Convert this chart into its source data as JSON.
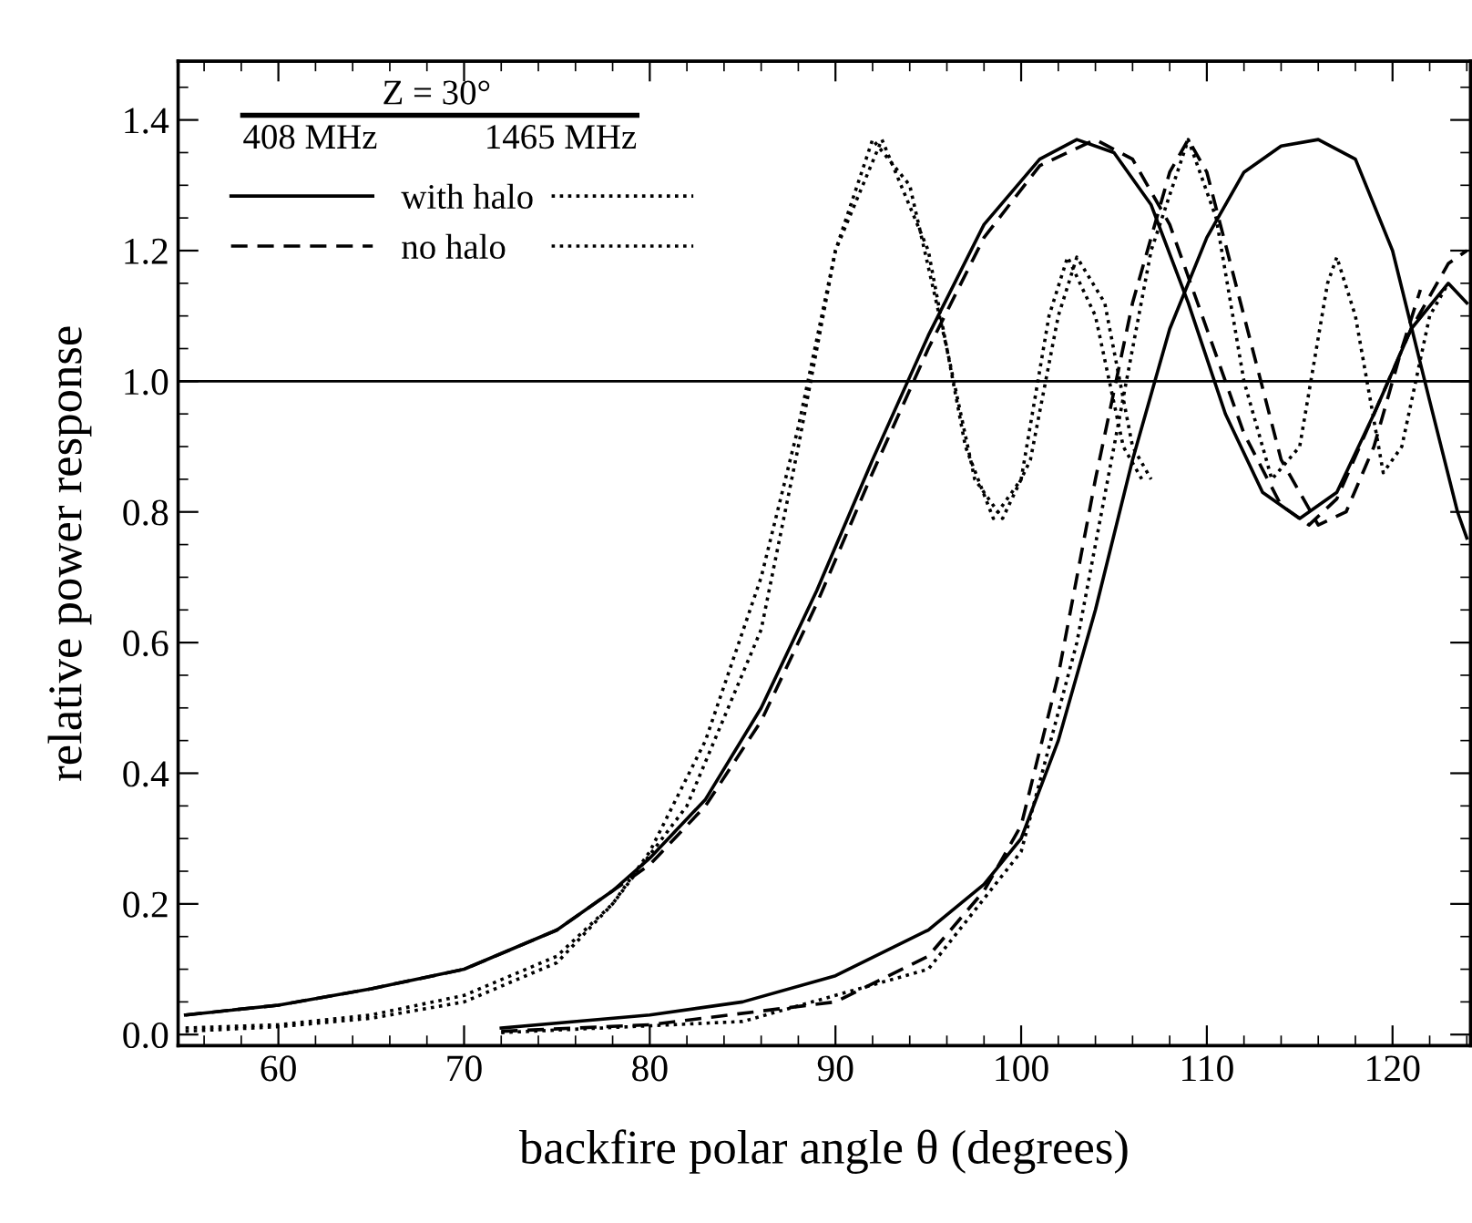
{
  "chart_data": {
    "type": "line",
    "xlabel": "backfire polar angle θ (degrees)",
    "ylabel": "relative power response",
    "legend_title": "Z = 30°",
    "annotations": [
      "408 MHz",
      "1465 MHz"
    ],
    "legend": "top left",
    "grid": false,
    "marker": "none",
    "xlim": [
      54.6,
      124.2
    ],
    "xticks": [
      60,
      70,
      80,
      90,
      100,
      110,
      120
    ],
    "ylim": [
      -0.017,
      1.49
    ],
    "yticks": [
      {
        "value": 0,
        "label": "0.0"
      },
      {
        "value": 0.2,
        "label": "0.2"
      },
      {
        "value": 0.4,
        "label": "0.4"
      },
      {
        "value": 0.6,
        "label": "0.6"
      },
      {
        "value": 0.8,
        "label": "0.8"
      },
      {
        "value": 1.0,
        "label": "1.0"
      },
      {
        "value": 1.2,
        "label": "1.2"
      },
      {
        "value": 1.4,
        "label": "1.4"
      }
    ],
    "ref_lines": [
      {
        "axis": "y",
        "value": 1.0,
        "color": "#000000",
        "line_style": "solid"
      }
    ],
    "series": [
      {
        "name": "with halo",
        "color": "#000000",
        "line_style": "solid",
        "x": [
          55,
          60,
          65,
          70,
          75,
          78,
          80,
          83,
          86,
          89,
          92,
          95,
          98,
          101,
          103,
          105,
          107,
          109,
          111,
          113,
          115,
          117,
          119,
          121,
          123,
          124
        ],
        "values": [
          0.03,
          0.045,
          0.07,
          0.1,
          0.16,
          0.22,
          0.27,
          0.36,
          0.5,
          0.68,
          0.88,
          1.07,
          1.24,
          1.34,
          1.37,
          1.35,
          1.27,
          1.12,
          0.95,
          0.83,
          0.79,
          0.83,
          0.95,
          1.08,
          1.15,
          1.12
        ]
      },
      {
        "name": "no halo",
        "color": "#000000",
        "line_style": "dashed",
        "x": [
          55,
          60,
          65,
          70,
          75,
          78,
          80,
          83,
          86,
          89,
          92,
          95,
          98,
          101,
          104,
          106,
          108,
          110,
          112,
          114,
          115.5,
          117,
          119,
          121,
          123,
          124
        ],
        "values": [
          0.03,
          0.045,
          0.07,
          0.1,
          0.16,
          0.22,
          0.26,
          0.35,
          0.48,
          0.66,
          0.86,
          1.05,
          1.22,
          1.33,
          1.37,
          1.34,
          1.24,
          1.08,
          0.92,
          0.81,
          0.78,
          0.82,
          0.95,
          1.08,
          1.18,
          1.2
        ]
      },
      {
        "color": "#000000",
        "line_style": "dotted",
        "x": [
          55,
          60,
          65,
          70,
          75,
          78,
          80,
          83,
          86,
          88,
          90,
          92,
          94,
          96,
          97.5,
          99,
          100.5,
          102,
          103,
          104.5,
          106,
          107
        ],
        "values": [
          0.01,
          0.015,
          0.03,
          0.06,
          0.12,
          0.2,
          0.28,
          0.45,
          0.7,
          0.93,
          1.2,
          1.37,
          1.3,
          1.05,
          0.85,
          0.79,
          0.88,
          1.1,
          1.19,
          1.12,
          0.9,
          0.85
        ]
      },
      {
        "color": "#000000",
        "line_style": "dotted",
        "x": [
          55,
          60,
          65,
          70,
          75,
          78,
          82,
          86,
          88,
          90,
          92.5,
          95,
          97,
          98.5,
          100,
          101.5,
          102.5,
          104,
          105.5,
          106.5
        ],
        "values": [
          0.005,
          0.012,
          0.025,
          0.05,
          0.11,
          0.2,
          0.35,
          0.62,
          0.9,
          1.2,
          1.37,
          1.2,
          0.9,
          0.79,
          0.85,
          1.1,
          1.19,
          1.1,
          0.9,
          0.85
        ]
      },
      {
        "color": "#000000",
        "line_style": "solid",
        "x": [
          72,
          80,
          85,
          90,
          95,
          98,
          100,
          102,
          104,
          106,
          108,
          110,
          112,
          114,
          116,
          118,
          120,
          122,
          123.5,
          124
        ],
        "values": [
          0.01,
          0.03,
          0.05,
          0.09,
          0.16,
          0.23,
          0.3,
          0.45,
          0.65,
          0.88,
          1.08,
          1.22,
          1.32,
          1.36,
          1.37,
          1.34,
          1.2,
          0.97,
          0.8,
          0.76
        ]
      },
      {
        "color": "#000000",
        "line_style": "dashed",
        "x": [
          72,
          80,
          90,
          95,
          98,
          100,
          102,
          104,
          106,
          108,
          109,
          110,
          112,
          114,
          116,
          117.5,
          119,
          120.5,
          121.5
        ],
        "values": [
          0.005,
          0.015,
          0.05,
          0.12,
          0.22,
          0.32,
          0.55,
          0.85,
          1.12,
          1.32,
          1.37,
          1.32,
          1.1,
          0.88,
          0.78,
          0.8,
          0.9,
          1.05,
          1.14
        ]
      },
      {
        "color": "#000000",
        "line_style": "dotted",
        "x": [
          72,
          85,
          95,
          100,
          103,
          105,
          107,
          109,
          110.5,
          112,
          113.5,
          115,
          116.5,
          117,
          118,
          119.5,
          120.5,
          122,
          123
        ],
        "values": [
          0.003,
          0.02,
          0.1,
          0.28,
          0.6,
          0.9,
          1.2,
          1.37,
          1.25,
          1.0,
          0.85,
          0.9,
          1.15,
          1.19,
          1.1,
          0.86,
          0.9,
          1.1,
          1.15
        ]
      }
    ]
  }
}
